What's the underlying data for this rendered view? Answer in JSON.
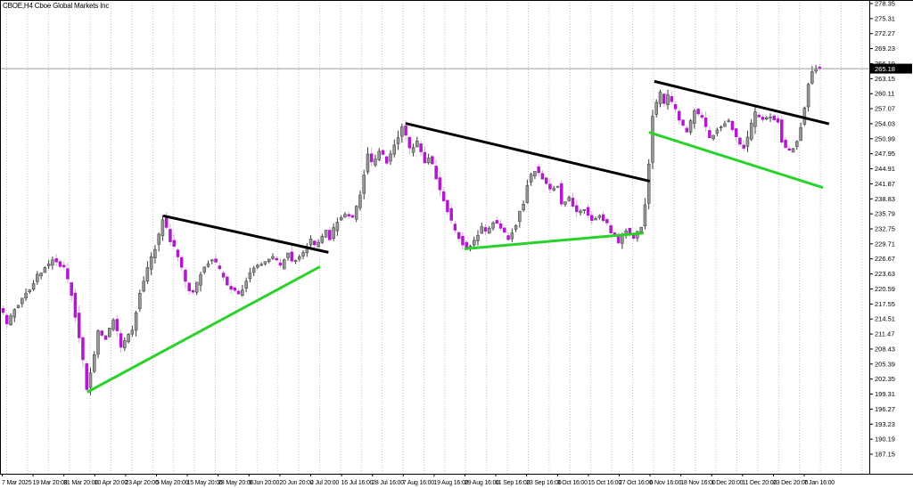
{
  "window": {
    "symbol_label": "CBOE,H4 Cboe Global Markets Inc"
  },
  "chart_data": {
    "type": "candlestick",
    "title": "CBOE,H4 Cboe Global Markets Inc",
    "symbol": "CBOE",
    "timeframe": "H4",
    "grid": "vertical-dotted",
    "legend_position": "none",
    "price_axis": {
      "side": "right",
      "min": 187.15,
      "max": 278.35,
      "tick_step": 3.04,
      "ticks": [
        "278.35",
        "275.31",
        "272.27",
        "269.23",
        "266.19",
        "263.15",
        "260.11",
        "257.07",
        "254.03",
        "250.99",
        "247.95",
        "244.91",
        "241.87",
        "238.83",
        "235.79",
        "232.75",
        "229.71",
        "226.67",
        "223.63",
        "220.59",
        "217.55",
        "214.51",
        "211.47",
        "208.43",
        "205.39",
        "202.35",
        "199.31",
        "196.27",
        "193.23",
        "190.19",
        "187.15"
      ]
    },
    "time_axis": {
      "labels": [
        "7 Mar 2025",
        "19 Mar 20:00",
        "31 Mar 20:00",
        "10 Apr 20:00",
        "23 Apr 20:00",
        "5 May 20:00",
        "15 May 20:00",
        "28 May 20:00",
        "9 Jun 20:00",
        "20 Jun 20:00",
        "2 Jul 20:00",
        "16 Jul 16:00",
        "28 Jul 16:00",
        "7 Aug 16:00",
        "19 Aug 16:00",
        "29 Aug 16:00",
        "11 Sep 16:00",
        "23 Sep 16:00",
        "3 Oct 16:00",
        "15 Oct 16:00",
        "27 Oct 16:00",
        "6 Nov 16:00",
        "18 Nov 16:00",
        "1 Dec 20:00",
        "11 Dec 20:00",
        "23 Dec 20:00",
        "7 Jan 16:00"
      ]
    },
    "current_price": {
      "bid": "265.18",
      "value": 265.18
    },
    "bars_total": 216,
    "price_path": [
      [
        0,
        217.0
      ],
      [
        2,
        213.6
      ],
      [
        4,
        216.5
      ],
      [
        7,
        219.7
      ],
      [
        10,
        223.3
      ],
      [
        14,
        226.5
      ],
      [
        17,
        224.8
      ],
      [
        19,
        219.6
      ],
      [
        21,
        210.6
      ],
      [
        23,
        200.2
      ],
      [
        25,
        207.0
      ],
      [
        26,
        212.1
      ],
      [
        28,
        210.6
      ],
      [
        30,
        214.2
      ],
      [
        32,
        208.8
      ],
      [
        35,
        212.4
      ],
      [
        37,
        219.6
      ],
      [
        39,
        225.0
      ],
      [
        42,
        231.3
      ],
      [
        43,
        235.0
      ],
      [
        45,
        230.4
      ],
      [
        47,
        226.9
      ],
      [
        49,
        221.5
      ],
      [
        51,
        219.6
      ],
      [
        53,
        224.2
      ],
      [
        56,
        226.9
      ],
      [
        58,
        224.2
      ],
      [
        60,
        221.5
      ],
      [
        63,
        219.4
      ],
      [
        65,
        222.4
      ],
      [
        67,
        225.1
      ],
      [
        70,
        226.0
      ],
      [
        72,
        227.2
      ],
      [
        74,
        225.0
      ],
      [
        76,
        228.3
      ],
      [
        77,
        226.0
      ],
      [
        80,
        227.8
      ],
      [
        82,
        230.5
      ],
      [
        83,
        229.0
      ],
      [
        86,
        232.3
      ],
      [
        87,
        230.8
      ],
      [
        89,
        234.4
      ],
      [
        91,
        235.9
      ],
      [
        93,
        234.8
      ],
      [
        95,
        240.4
      ],
      [
        97,
        247.6
      ],
      [
        98,
        245.8
      ],
      [
        100,
        248.5
      ],
      [
        102,
        246.3
      ],
      [
        104,
        249.4
      ],
      [
        106,
        253.8
      ],
      [
        108,
        248.5
      ],
      [
        110,
        250.3
      ],
      [
        112,
        245.8
      ],
      [
        113,
        247.6
      ],
      [
        115,
        243.1
      ],
      [
        117,
        238.6
      ],
      [
        119,
        234.1
      ],
      [
        121,
        230.9
      ],
      [
        123,
        228.6
      ],
      [
        125,
        230.5
      ],
      [
        127,
        233.2
      ],
      [
        128,
        231.9
      ],
      [
        130,
        234.4
      ],
      [
        132,
        232.6
      ],
      [
        134,
        230.8
      ],
      [
        136,
        233.7
      ],
      [
        138,
        238.6
      ],
      [
        139,
        242.2
      ],
      [
        141,
        245.0
      ],
      [
        143,
        243.1
      ],
      [
        145,
        240.4
      ],
      [
        147,
        241.6
      ],
      [
        148,
        238.0
      ],
      [
        150,
        239.1
      ],
      [
        152,
        235.9
      ],
      [
        154,
        236.8
      ],
      [
        156,
        234.4
      ],
      [
        158,
        235.5
      ],
      [
        160,
        233.7
      ],
      [
        161,
        231.9
      ],
      [
        163,
        230.1
      ],
      [
        165,
        232.6
      ],
      [
        167,
        230.8
      ],
      [
        169,
        233.0
      ],
      [
        170,
        237.7
      ],
      [
        171,
        246.7
      ],
      [
        172,
        255.7
      ],
      [
        174,
        260.5
      ],
      [
        175,
        257.8
      ],
      [
        176,
        259.6
      ],
      [
        178,
        256.6
      ],
      [
        179,
        254.8
      ],
      [
        181,
        252.2
      ],
      [
        183,
        257.0
      ],
      [
        185,
        254.8
      ],
      [
        187,
        250.8
      ],
      [
        189,
        253.0
      ],
      [
        192,
        254.8
      ],
      [
        194,
        251.2
      ],
      [
        196,
        248.9
      ],
      [
        198,
        253.9
      ],
      [
        199,
        256.0
      ],
      [
        201,
        254.8
      ],
      [
        203,
        255.7
      ],
      [
        205,
        254.3
      ],
      [
        206,
        250.5
      ],
      [
        208,
        248.2
      ],
      [
        210,
        250.3
      ],
      [
        211,
        253.9
      ],
      [
        212,
        257.8
      ],
      [
        213,
        262.0
      ],
      [
        214,
        264.7
      ],
      [
        215,
        265.5
      ]
    ],
    "trendlines": [
      {
        "id": "resistance-1",
        "kind": "resistance",
        "color": "#000000",
        "from": [
          42.5,
          235.4
        ],
        "to": [
          86,
          228.0
        ]
      },
      {
        "id": "resistance-2",
        "kind": "resistance",
        "color": "#000000",
        "from": [
          106.3,
          254.1
        ],
        "to": [
          170.6,
          242.4
        ]
      },
      {
        "id": "resistance-3",
        "kind": "resistance",
        "color": "#000000",
        "from": [
          171.8,
          262.6
        ],
        "to": [
          217.8,
          254.0
        ]
      },
      {
        "id": "support-1",
        "kind": "support",
        "color": "#2bd12b",
        "from": [
          22.5,
          199.7
        ],
        "to": [
          83.8,
          225.1
        ]
      },
      {
        "id": "support-2",
        "kind": "support",
        "color": "#2bd12b",
        "from": [
          121.8,
          228.7
        ],
        "to": [
          169,
          231.9
        ]
      },
      {
        "id": "support-3",
        "kind": "support",
        "color": "#2bd12b",
        "from": [
          170.4,
          252.3
        ],
        "to": [
          216.2,
          241.1
        ]
      }
    ],
    "colors": {
      "background": "#ffffff",
      "grid": "#c3c3c3",
      "axis": "#000000",
      "bull_body": "#969696",
      "bull_edge": "#3a3a3a",
      "bull_wick": "#3a3a3a",
      "bear_body": "#b219cc",
      "bear_wick": "#dda6de",
      "bid_line": "#9a9a9a",
      "bid_label_bg": "#000000",
      "bid_label_text": "#ffffff",
      "trend_black": "#000000",
      "trend_green": "#2bd12b"
    }
  }
}
